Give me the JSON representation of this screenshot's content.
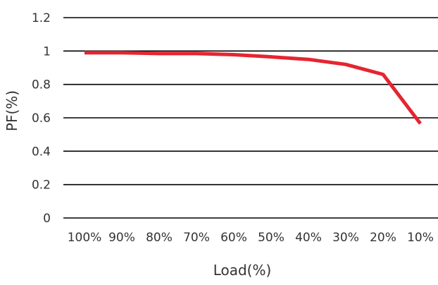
{
  "chart_data": {
    "type": "line",
    "title": "",
    "xlabel": "Load(%)",
    "ylabel": "PF(%)",
    "categories": [
      "100%",
      "90%",
      "80%",
      "70%",
      "60%",
      "50%",
      "40%",
      "30%",
      "20%",
      "10%"
    ],
    "series": [
      {
        "values": [
          0.99,
          0.99,
          0.985,
          0.985,
          0.978,
          0.965,
          0.95,
          0.92,
          0.86,
          0.565
        ]
      }
    ],
    "ylim": [
      0,
      1.2
    ],
    "yticks": [
      "0",
      "0.2",
      "0.4",
      "0.6",
      "0.8",
      "1",
      "1.2"
    ],
    "grid": true,
    "legend": "none",
    "colors": {
      "series": "#e52530",
      "grid": "#000000",
      "text": "#333333"
    }
  }
}
